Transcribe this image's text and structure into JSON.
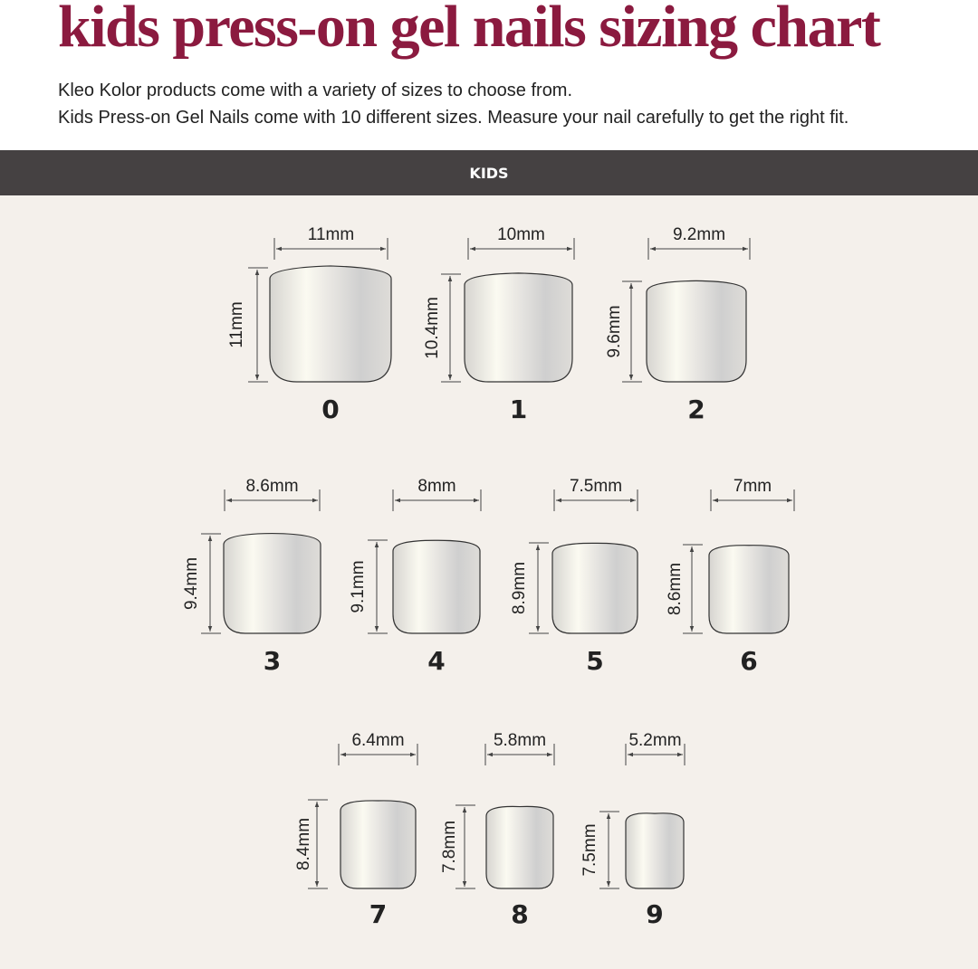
{
  "header": {
    "title": "kids press-on gel nails sizing chart",
    "lines": [
      "Kleo Kolor products come with a variety of sizes to choose from.",
      "Kids Press-on Gel Nails come with 10 different sizes. Measure your nail carefully to get the right fit."
    ]
  },
  "band": {
    "label": "KIDS"
  },
  "nails": [
    {
      "size": "0",
      "width": "11mm",
      "height": "11mm"
    },
    {
      "size": "1",
      "width": "10mm",
      "height": "10.4mm"
    },
    {
      "size": "2",
      "width": "9.2mm",
      "height": "9.6mm"
    },
    {
      "size": "3",
      "width": "8.6mm",
      "height": "9.4mm"
    },
    {
      "size": "4",
      "width": "8mm",
      "height": "9.1mm"
    },
    {
      "size": "5",
      "width": "7.5mm",
      "height": "8.9mm"
    },
    {
      "size": "6",
      "width": "7mm",
      "height": "8.6mm"
    },
    {
      "size": "7",
      "width": "6.4mm",
      "height": "8.4mm"
    },
    {
      "size": "8",
      "width": "5.8mm",
      "height": "7.8mm"
    },
    {
      "size": "9",
      "width": "5.2mm",
      "height": "7.5mm"
    }
  ]
}
